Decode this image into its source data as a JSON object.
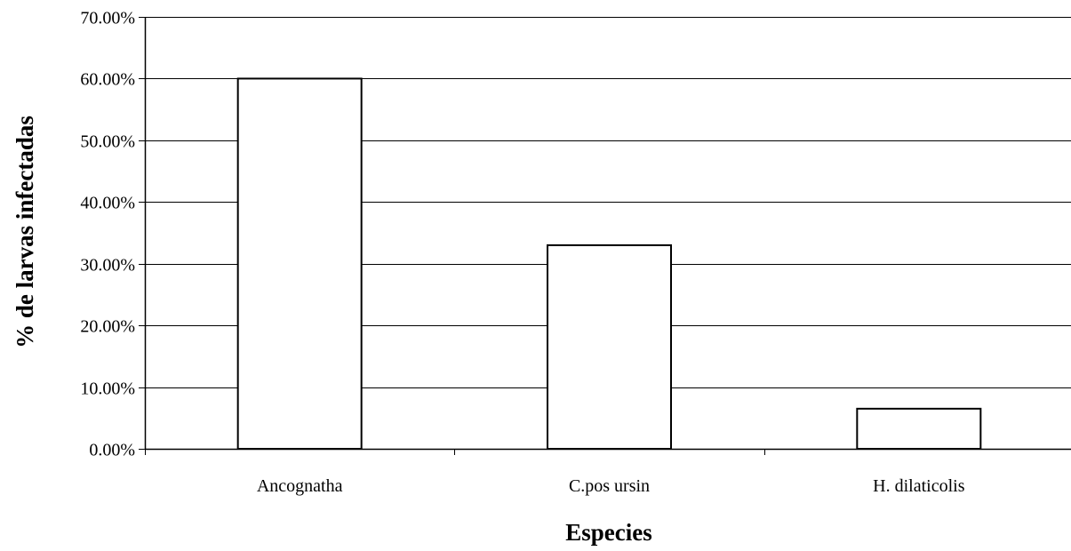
{
  "chart_data": {
    "type": "bar",
    "categories": [
      "Ancognatha",
      "C.pos ursin",
      "H. dilaticolis"
    ],
    "values": [
      0.6,
      0.33,
      0.065
    ],
    "title": "",
    "xlabel": "Especies",
    "ylabel": "% de larvas infectadas",
    "ylim": [
      0,
      0.7
    ],
    "ytick_labels": [
      "0.00%",
      "10.00%",
      "20.00%",
      "30.00%",
      "40.00%",
      "50.00%",
      "60.00%",
      "70.00%"
    ],
    "grid": true,
    "legend": "none",
    "colors": {
      "bar_fill": "#ffffff",
      "bar_stroke": "#000000",
      "grid": "#000000"
    }
  }
}
